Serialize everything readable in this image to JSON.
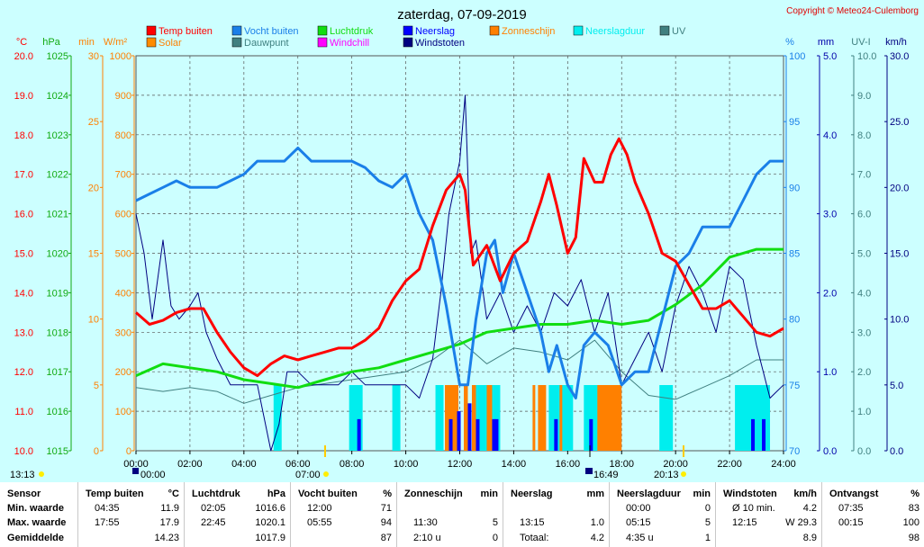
{
  "title": "zaterdag, 07-09-2019",
  "copyright": "Copyright © Meteo24-Culemborg",
  "legend": [
    {
      "label": "Temp buiten",
      "color": "#ff0000"
    },
    {
      "label": "Vocht buiten",
      "color": "#1a7fe8"
    },
    {
      "label": "Luchtdruk",
      "color": "#11dd11"
    },
    {
      "label": "Neerslag",
      "color": "#0000ff"
    },
    {
      "label": "Zonneschijn",
      "color": "#ff8000"
    },
    {
      "label": "Neerslagduur",
      "color": "#00eeee"
    },
    {
      "label": "UV",
      "color": "#408080"
    },
    {
      "label": "Solar",
      "color": "#ff8c00"
    },
    {
      "label": "Dauwpunt",
      "color": "#408080"
    },
    {
      "label": "Windchill",
      "color": "#ff00ff"
    },
    {
      "label": "Windstoten",
      "color": "#000080"
    }
  ],
  "axes_units": {
    "temp": "°C",
    "pressure": "hPa",
    "minutes": "min",
    "solar": "W/m²",
    "humidity": "%",
    "rain": "mm",
    "uv": "UV-I",
    "wind": "km/h"
  },
  "left_axes": {
    "temp": [
      "20.0",
      "19.0",
      "18.0",
      "17.0",
      "16.0",
      "15.0",
      "14.0",
      "13.0",
      "12.0",
      "11.0",
      "10.0"
    ],
    "pressure": [
      "1025",
      "1024",
      "1023",
      "1022",
      "1021",
      "1020",
      "1019",
      "1018",
      "1017",
      "1016",
      "1015"
    ],
    "minutes": [
      "30",
      "25",
      "20",
      "15",
      "10",
      "5",
      "0"
    ],
    "solar": [
      "1000",
      "900",
      "800",
      "700",
      "600",
      "500",
      "400",
      "300",
      "200",
      "100",
      "0"
    ]
  },
  "right_axes": {
    "humidity": [
      "100",
      "95",
      "90",
      "85",
      "80",
      "75",
      "70"
    ],
    "rain": [
      "5.0",
      "4.0",
      "3.0",
      "2.0",
      "1.0",
      "0.0"
    ],
    "uv": [
      "10.0",
      "9.0",
      "8.0",
      "7.0",
      "6.0",
      "5.0",
      "4.0",
      "3.0",
      "2.0",
      "1.0",
      "0.0"
    ],
    "wind": [
      "30.0",
      "25.0",
      "20.0",
      "15.0",
      "10.0",
      "5.0",
      "0.0"
    ]
  },
  "x_ticks": [
    "00:00",
    "02:00",
    "04:00",
    "06:00",
    "08:00",
    "10:00",
    "12:00",
    "14:00",
    "16:00",
    "18:00",
    "20:00",
    "22:00",
    "24:00"
  ],
  "markers": {
    "moonrise": "13:13",
    "sunrise_left": "00:00",
    "sunrise": "07:00",
    "moonset": "16:49",
    "sunset": "20:13"
  },
  "chart_data": {
    "type": "line",
    "x_unit": "hour",
    "series": [
      {
        "name": "Temp buiten",
        "unit": "°C",
        "color": "#ff0000",
        "x": [
          0,
          0.5,
          1,
          1.5,
          2,
          2.5,
          3,
          3.5,
          4,
          4.5,
          5,
          5.5,
          6,
          6.5,
          7,
          7.5,
          8,
          8.5,
          9,
          9.5,
          10,
          10.5,
          11,
          11.5,
          12,
          12.2,
          12.5,
          13,
          13.5,
          14,
          14.5,
          15,
          15.3,
          15.6,
          16,
          16.3,
          16.6,
          17,
          17.3,
          17.6,
          17.9,
          18.2,
          18.5,
          19,
          19.5,
          20,
          20.5,
          21,
          21.5,
          22,
          22.5,
          23,
          23.5,
          24
        ],
        "y": [
          13.5,
          13.2,
          13.3,
          13.5,
          13.6,
          13.6,
          13.0,
          12.5,
          12.1,
          11.9,
          12.2,
          12.4,
          12.3,
          12.4,
          12.5,
          12.6,
          12.6,
          12.8,
          13.1,
          13.8,
          14.3,
          14.6,
          15.7,
          16.6,
          17.0,
          16.6,
          14.7,
          15.2,
          14.3,
          15.0,
          15.3,
          16.3,
          17.0,
          16.2,
          15.0,
          15.4,
          17.4,
          16.8,
          16.8,
          17.5,
          17.9,
          17.5,
          16.8,
          16.0,
          15.0,
          14.8,
          14.2,
          13.6,
          13.6,
          13.8,
          13.4,
          13.0,
          12.9,
          13.1
        ]
      },
      {
        "name": "Vocht buiten",
        "unit": "%",
        "color": "#1a7fe8",
        "x": [
          0,
          0.5,
          1,
          1.5,
          2,
          2.5,
          3,
          3.5,
          4,
          4.5,
          5,
          5.5,
          6,
          6.5,
          7,
          7.5,
          8,
          8.5,
          9,
          9.5,
          10,
          10.5,
          11,
          11.5,
          12,
          12.3,
          12.6,
          13,
          13.3,
          13.6,
          14,
          14.5,
          15,
          15.3,
          15.6,
          16,
          16.3,
          16.6,
          17,
          17.5,
          18,
          18.5,
          19,
          19.5,
          20,
          20.5,
          21,
          21.5,
          22,
          22.5,
          23,
          23.5,
          24
        ],
        "y": [
          89,
          89.5,
          90,
          90.5,
          90,
          90,
          90,
          90.5,
          91,
          92,
          92,
          92,
          93,
          92,
          92,
          92,
          92,
          91.5,
          90.5,
          90,
          91,
          88,
          86,
          81,
          75,
          75,
          80,
          85,
          86,
          82,
          85,
          82,
          79,
          76,
          78,
          75,
          74,
          78,
          79,
          78,
          75,
          76,
          76,
          80,
          84,
          85,
          87,
          87,
          87,
          89,
          91,
          92,
          92
        ]
      },
      {
        "name": "Luchtdruk",
        "unit": "hPa",
        "color": "#11dd11",
        "x": [
          0,
          1,
          2,
          3,
          4,
          5,
          6,
          7,
          8,
          9,
          10,
          11,
          12,
          13,
          14,
          15,
          16,
          17,
          18,
          19,
          20,
          21,
          22,
          23,
          24
        ],
        "y": [
          1016.9,
          1017.2,
          1017.1,
          1017.0,
          1016.8,
          1016.7,
          1016.6,
          1016.8,
          1017.0,
          1017.1,
          1017.3,
          1017.5,
          1017.7,
          1018.0,
          1018.1,
          1018.2,
          1018.2,
          1018.3,
          1018.2,
          1018.3,
          1018.7,
          1019.2,
          1019.9,
          1020.1,
          1020.1
        ]
      },
      {
        "name": "Dauwpunt",
        "unit": "°C",
        "color": "#408080",
        "x": [
          0,
          1,
          2,
          3,
          4,
          5,
          6,
          7,
          8,
          9,
          10,
          11,
          12,
          13,
          14,
          15,
          16,
          17,
          18,
          19,
          20,
          21,
          22,
          23,
          24
        ],
        "y": [
          11.6,
          11.5,
          11.6,
          11.5,
          11.2,
          11.4,
          11.6,
          11.7,
          11.8,
          11.9,
          12.0,
          12.3,
          12.8,
          12.2,
          12.6,
          12.5,
          12.3,
          12.8,
          12.0,
          11.4,
          11.3,
          11.6,
          11.9,
          12.3,
          12.3
        ]
      },
      {
        "name": "Windstoten",
        "unit": "km/h",
        "color": "#000080",
        "x": [
          0,
          0.3,
          0.6,
          1,
          1.3,
          1.6,
          2,
          2.3,
          2.6,
          3,
          3.5,
          4,
          4.5,
          5,
          5.3,
          5.6,
          6,
          6.5,
          7,
          7.5,
          8,
          8.5,
          9,
          9.5,
          10,
          10.5,
          11,
          11.3,
          11.6,
          12,
          12.2,
          12.4,
          12.6,
          13,
          13.5,
          14,
          14.5,
          15,
          15.5,
          16,
          16.5,
          17,
          17.5,
          18,
          18.5,
          19,
          19.5,
          20,
          20.5,
          21,
          21.5,
          22,
          22.5,
          23,
          23.5,
          24
        ],
        "y": [
          18,
          15,
          10,
          16,
          11,
          10,
          11,
          12,
          9,
          7,
          5,
          5,
          5,
          0,
          2,
          6,
          6,
          5,
          5,
          5,
          6,
          5,
          5,
          5,
          5,
          4,
          7,
          12,
          18,
          22,
          27,
          15,
          16,
          10,
          12,
          9,
          11,
          9,
          12,
          11,
          13,
          9,
          12,
          5,
          7,
          9,
          6,
          11,
          14,
          12,
          9,
          14,
          13,
          8,
          4,
          5
        ]
      }
    ],
    "ylim": {
      "temp": [
        10,
        20
      ],
      "humidity": [
        70,
        100
      ],
      "pressure": [
        1015,
        1025
      ],
      "wind": [
        0,
        30
      ]
    },
    "grid": true
  },
  "table": {
    "columns": [
      {
        "header": "Sensor",
        "unit": "",
        "rows": [
          [
            "Min. waarde",
            ""
          ],
          [
            "Max. waarde",
            ""
          ],
          [
            "Gemiddelde",
            ""
          ]
        ]
      },
      {
        "header": "Temp buiten",
        "unit": "°C",
        "rows": [
          [
            "04:35",
            "11.9"
          ],
          [
            "17:55",
            "17.9"
          ],
          [
            "",
            "14.23"
          ]
        ]
      },
      {
        "header": "Luchtdruk",
        "unit": "hPa",
        "rows": [
          [
            "02:05",
            "1016.6"
          ],
          [
            "22:45",
            "1020.1"
          ],
          [
            "",
            "1017.9"
          ]
        ]
      },
      {
        "header": "Vocht buiten",
        "unit": "%",
        "rows": [
          [
            "12:00",
            "71"
          ],
          [
            "05:55",
            "94"
          ],
          [
            "",
            "87"
          ]
        ]
      },
      {
        "header": "Zonneschijn",
        "unit": "min",
        "rows": [
          [
            "",
            ""
          ],
          [
            "11:30",
            "5"
          ],
          [
            "2:10 u",
            "0"
          ]
        ]
      },
      {
        "header": "Neerslag",
        "unit": "mm",
        "rows": [
          [
            "",
            ""
          ],
          [
            "13:15",
            "1.0"
          ],
          [
            "Totaal:",
            "4.2"
          ]
        ]
      },
      {
        "header": "Neerslagduur",
        "unit": "min",
        "rows": [
          [
            "00:00",
            "0"
          ],
          [
            "05:15",
            "5"
          ],
          [
            "4:35 u",
            "1"
          ]
        ]
      },
      {
        "header": "Windstoten",
        "unit": "km/h",
        "rows": [
          [
            "Ø 10 min.",
            "4.2"
          ],
          [
            "12:15",
            "W 29.3"
          ],
          [
            "",
            "8.9"
          ]
        ]
      },
      {
        "header": "Ontvangst",
        "unit": "%",
        "rows": [
          [
            "07:35",
            "83"
          ],
          [
            "00:15",
            "100"
          ],
          [
            "",
            "98"
          ]
        ]
      }
    ]
  }
}
